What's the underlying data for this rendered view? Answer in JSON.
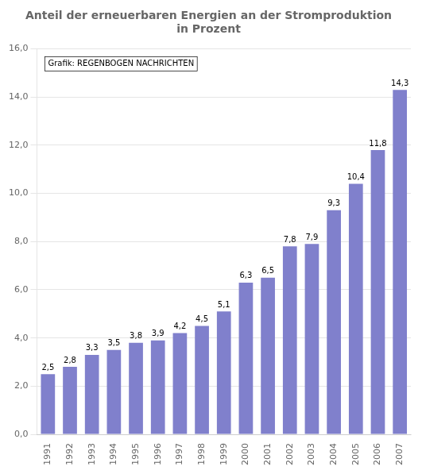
{
  "chart_data": {
    "type": "bar",
    "title": "Anteil der erneuerbaren Energien an der Stromproduktion\nin Prozent",
    "categories": [
      "1991",
      "1992",
      "1993",
      "1994",
      "1995",
      "1996",
      "1997",
      "1998",
      "1999",
      "2000",
      "2001",
      "2002",
      "2003",
      "2004",
      "2005",
      "2006",
      "2007"
    ],
    "values": [
      2.5,
      2.8,
      3.3,
      3.5,
      3.8,
      3.9,
      4.2,
      4.5,
      5.1,
      6.3,
      6.5,
      7.8,
      7.9,
      9.3,
      10.4,
      11.8,
      14.3
    ],
    "value_labels": [
      "2,5",
      "2,8",
      "3,3",
      "3,5",
      "3,8",
      "3,9",
      "4,2",
      "4,5",
      "5,1",
      "6,3",
      "6,5",
      "7,8",
      "7,9",
      "9,3",
      "10,4",
      "11,8",
      "14,3"
    ],
    "data_labels": true,
    "color": "#8080cc",
    "ylim": [
      0.0,
      16.0
    ],
    "yticks": [
      {
        "value": 0.0,
        "label": "0,0"
      },
      {
        "value": 2.0,
        "label": "2,0"
      },
      {
        "value": 4.0,
        "label": "4,0"
      },
      {
        "value": 6.0,
        "label": "6,0"
      },
      {
        "value": 8.0,
        "label": "8,0"
      },
      {
        "value": 10.0,
        "label": "10,0"
      },
      {
        "value": 12.0,
        "label": "12,0"
      },
      {
        "value": 14.0,
        "label": "14,0"
      },
      {
        "value": 16.0,
        "label": "16,0"
      }
    ],
    "grid": true,
    "annotation": "Grafik: REGENBOGEN NACHRICHTEN"
  }
}
